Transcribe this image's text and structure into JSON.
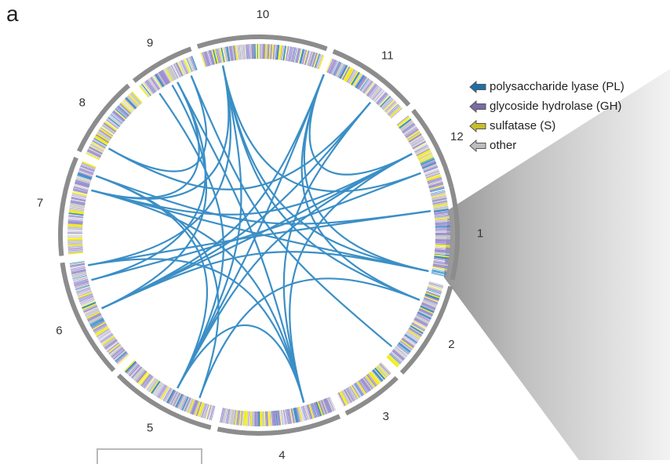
{
  "panel_label": "a",
  "sectors": [
    {
      "label": "1"
    },
    {
      "label": "2"
    },
    {
      "label": "3"
    },
    {
      "label": "4"
    },
    {
      "label": "5"
    },
    {
      "label": "6"
    },
    {
      "label": "7"
    },
    {
      "label": "8"
    },
    {
      "label": "9"
    },
    {
      "label": "10"
    },
    {
      "label": "11"
    },
    {
      "label": "12"
    }
  ],
  "legend": [
    {
      "label": "polysaccharide lyase (PL)",
      "color": "#1f6fa8",
      "icon": "arrow-left-icon"
    },
    {
      "label": "glycoside hydrolase (GH)",
      "color": "#7b6aa8",
      "icon": "arrow-left-icon"
    },
    {
      "label": "sulfatase (S)",
      "color": "#c8bd2a",
      "icon": "arrow-left-icon"
    },
    {
      "label": "other",
      "color": "#bdbdbd",
      "icon": "arrow-left-icon"
    }
  ],
  "colors": {
    "sector_ring": "#8c8c8c",
    "link": "#3b8fc6",
    "track_gh": "#9b8fd0",
    "track_other": "#c6c6c6",
    "track_s": "#f2ea1c",
    "track_pl": "#2e8cc4",
    "zoom_wedge": "#d9d9d9"
  }
}
